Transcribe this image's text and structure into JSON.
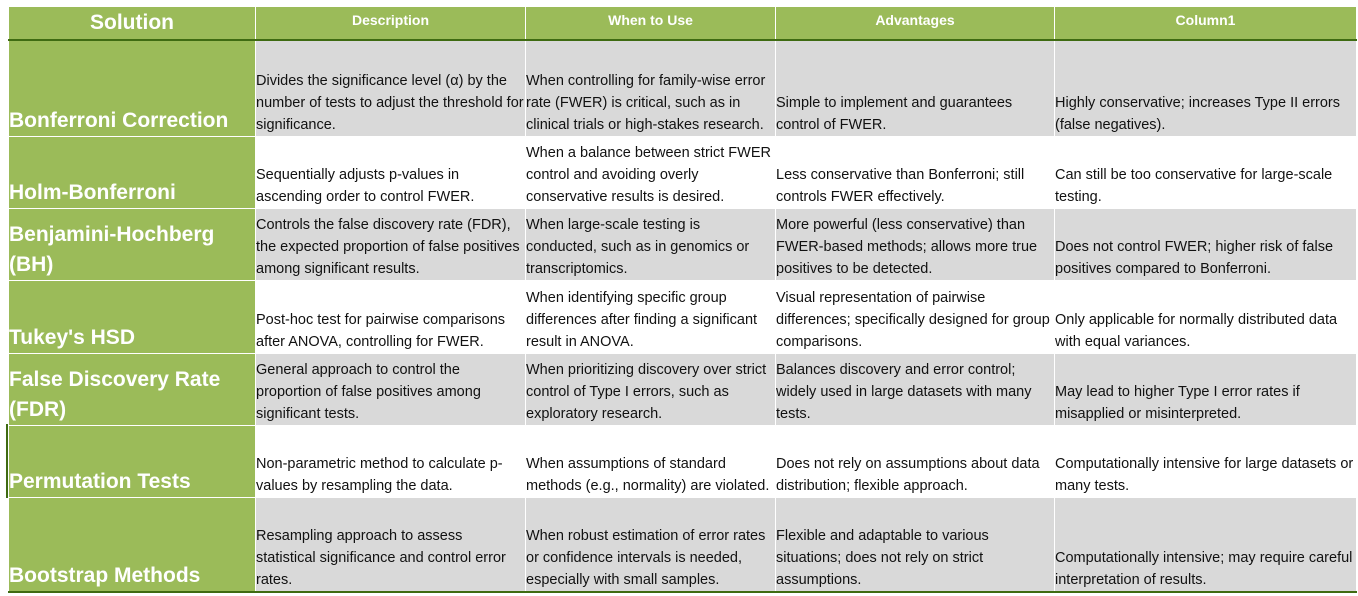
{
  "headers": {
    "solution": "Solution",
    "description": "Description",
    "when_to_use": "When to Use",
    "advantages": "Advantages",
    "column1": "Column1"
  },
  "rows": [
    {
      "solution": "Bonferroni Correction",
      "description": "Divides the significance level (α) by the number of tests to adjust the threshold for significance.",
      "when_to_use": "When controlling for family-wise error rate (FWER) is critical, such as in clinical trials or high-stakes research.",
      "advantages": "Simple to implement and guarantees control of FWER.",
      "column1": "Highly conservative; increases Type II errors (false negatives)."
    },
    {
      "solution": "Holm-Bonferroni",
      "description": "Sequentially adjusts p-values in ascending order to control FWER.",
      "when_to_use": "When a balance between strict FWER control and avoiding overly conservative results is desired.",
      "advantages": "Less conservative than Bonferroni; still controls FWER effectively.",
      "column1": "Can still be too conservative for large-scale testing."
    },
    {
      "solution": "Benjamini-Hochberg (BH)",
      "description": "Controls the false discovery rate (FDR), the expected proportion of false positives among significant results.",
      "when_to_use": "When large-scale testing is conducted, such as in genomics or transcriptomics.",
      "advantages": "More powerful (less conservative) than FWER-based methods; allows more true positives to be detected.",
      "column1": "Does not control FWER; higher risk of false positives compared to Bonferroni."
    },
    {
      "solution": "Tukey's HSD",
      "description": "Post-hoc test for pairwise comparisons after ANOVA, controlling for FWER.",
      "when_to_use": "When identifying specific group differences after finding a significant result in ANOVA.",
      "advantages": "Visual representation of pairwise differences; specifically designed for group comparisons.",
      "column1": "Only applicable for normally distributed data with equal variances."
    },
    {
      "solution": "False Discovery Rate (FDR)",
      "description": "General approach to control the proportion of false positives among significant tests.",
      "when_to_use": "When prioritizing discovery over strict control of Type I errors, such as exploratory research.",
      "advantages": "Balances discovery and error control; widely used in large datasets with many tests.",
      "column1": "May lead to higher Type I error rates if misapplied or misinterpreted."
    },
    {
      "solution": "Permutation Tests",
      "description": "Non-parametric method to calculate p-values by resampling the data.",
      "when_to_use": "When assumptions of standard methods (e.g., normality) are violated.",
      "advantages": "Does not rely on assumptions about data distribution; flexible approach.",
      "column1": "Computationally intensive for large datasets or many tests."
    },
    {
      "solution": "Bootstrap Methods",
      "description": "Resampling approach to assess statistical significance and control error rates.",
      "when_to_use": "When robust estimation of error rates or confidence intervals is needed, especially with small samples.",
      "advantages": "Flexible and adaptable to various situations; does not rely on strict assumptions.",
      "column1": "Computationally intensive; may require careful interpretation of results."
    }
  ],
  "colors": {
    "header_green": "#9bbb59",
    "band_gray": "#d9d9d9",
    "border_dark_green": "#3f6b12"
  }
}
